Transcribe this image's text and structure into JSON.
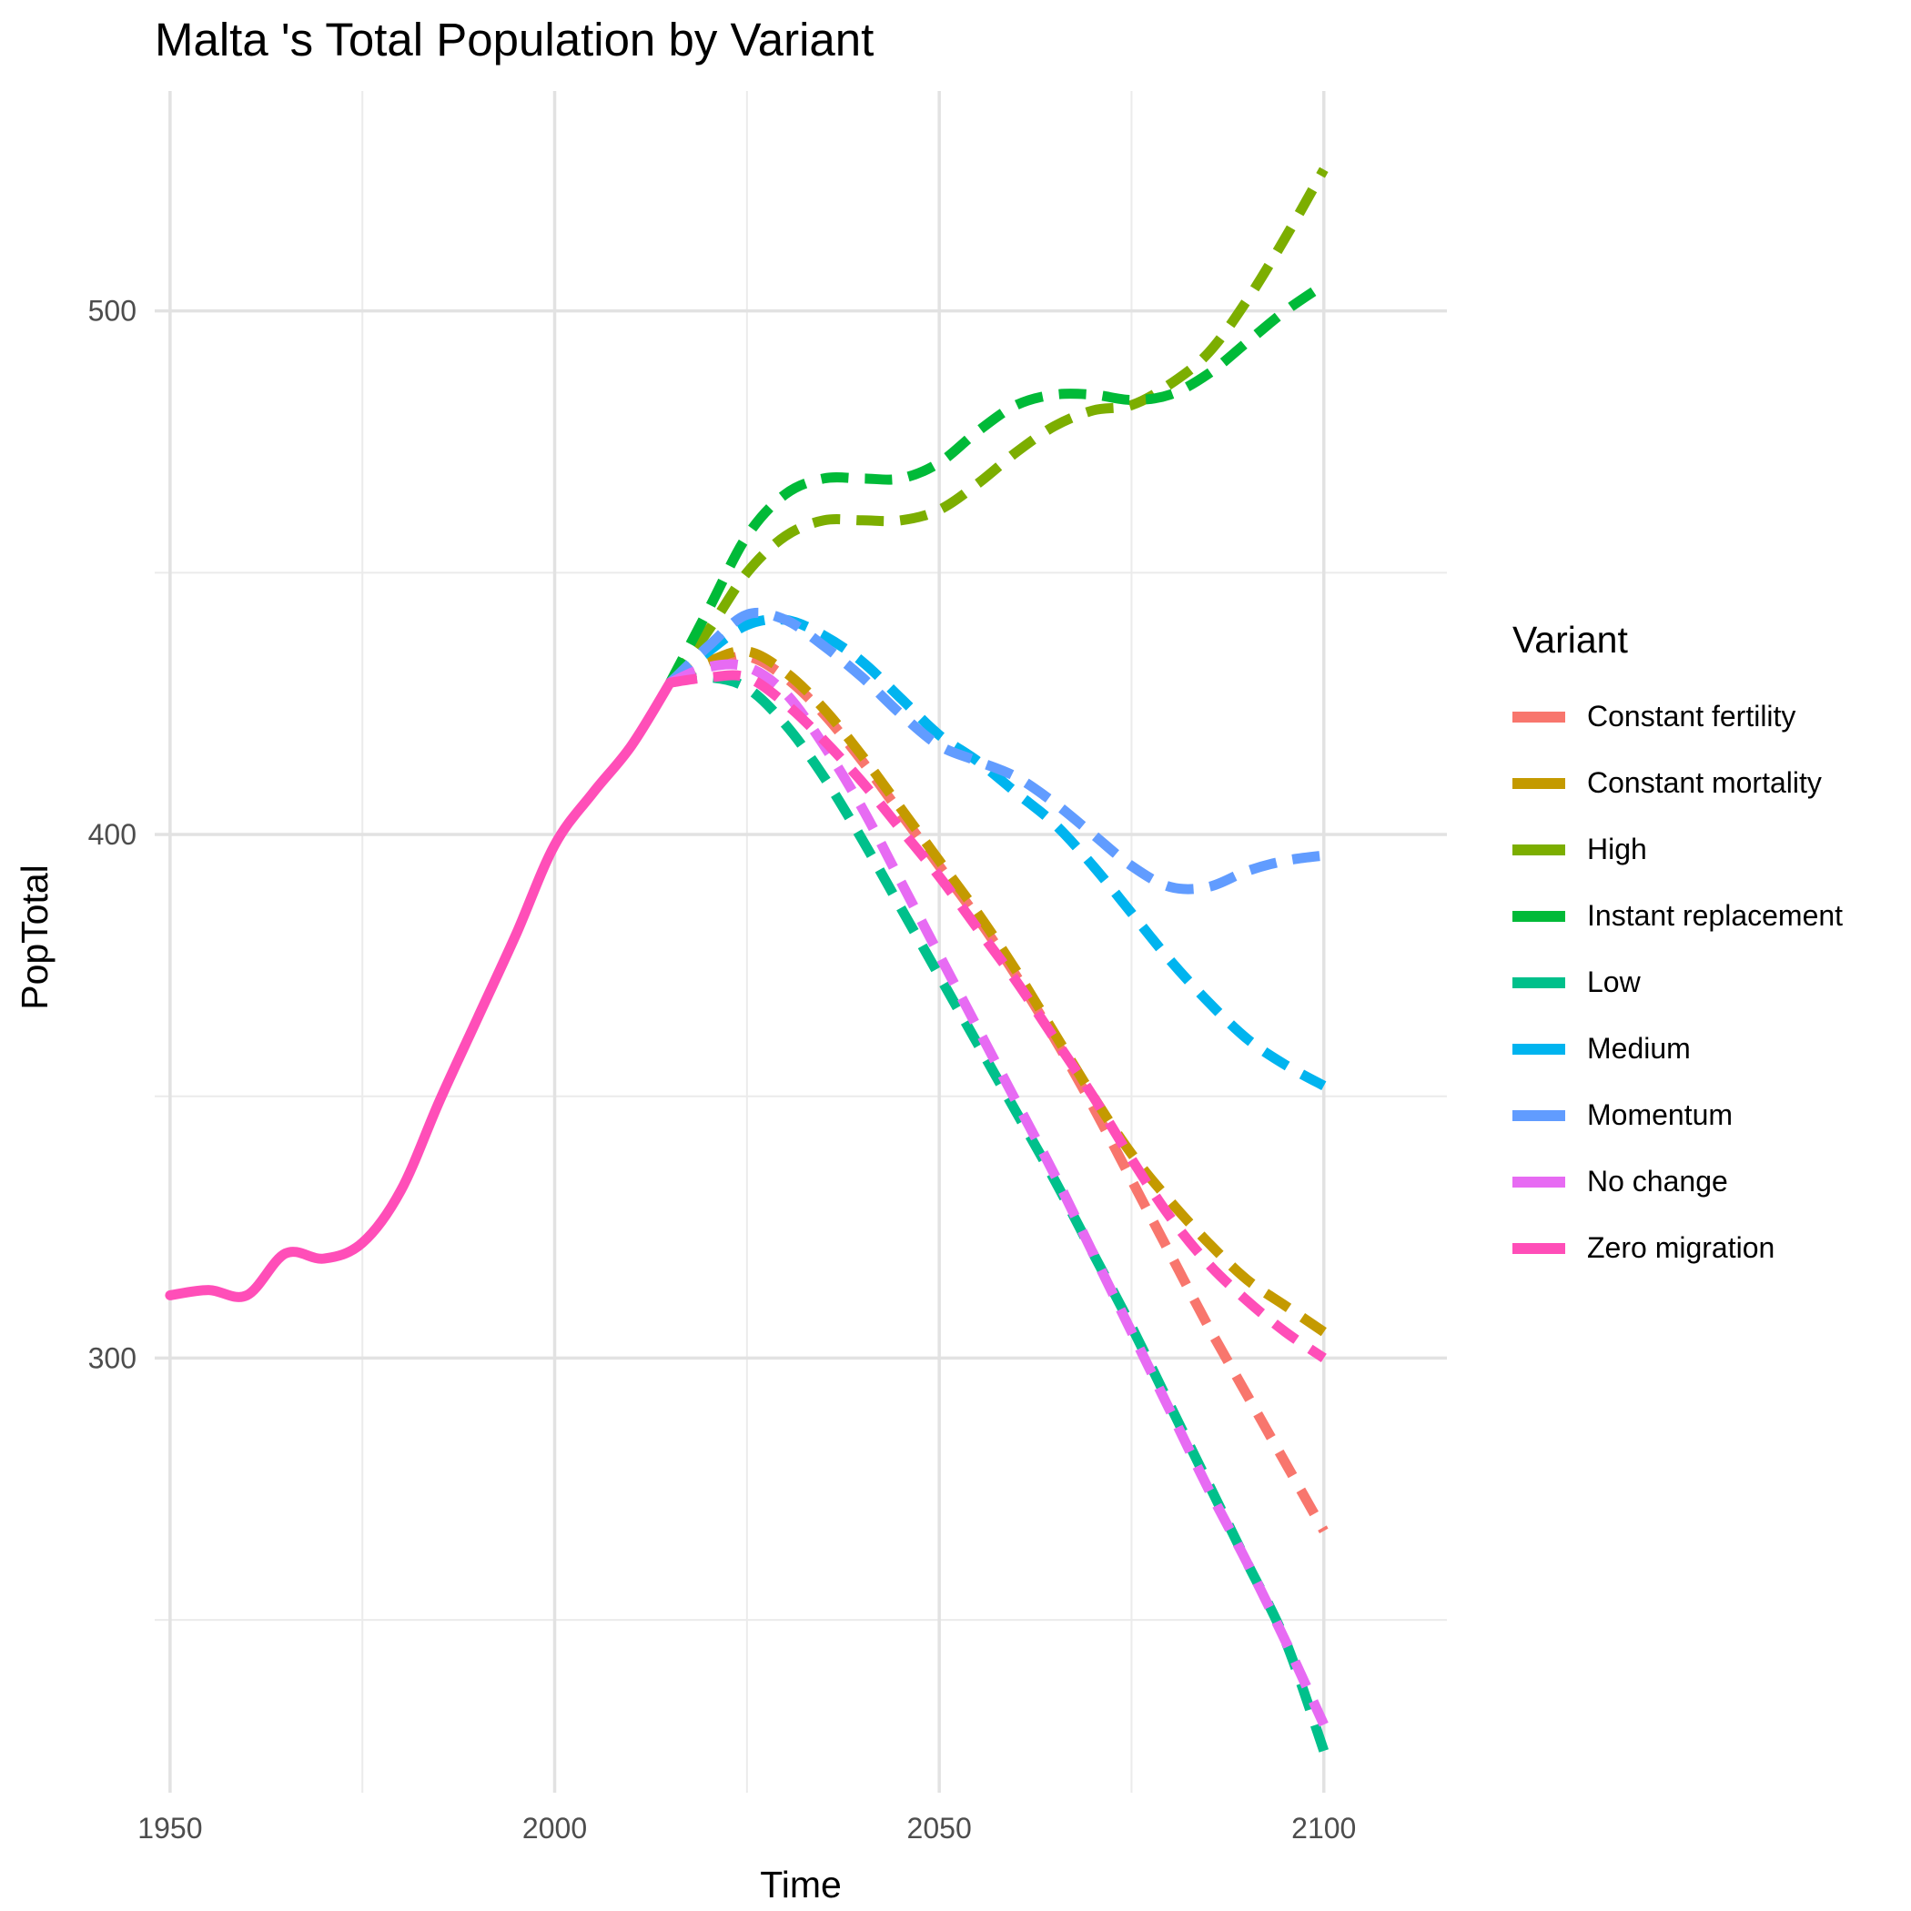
{
  "chart_data": {
    "type": "line",
    "title": "Malta 's Total Population by Variant",
    "xlabel": "Time",
    "ylabel": "PopTotal",
    "xlim": [
      1948,
      2116
    ],
    "ylim": [
      217,
      542
    ],
    "x_ticks": [
      1950,
      2000,
      2050,
      2100
    ],
    "x_minor": [
      1975,
      2025,
      2075
    ],
    "y_ticks": [
      300,
      400,
      500
    ],
    "y_minor": [
      250,
      350,
      450
    ],
    "grid": true,
    "legend": {
      "title": "Variant",
      "placement": "right"
    },
    "series": [
      {
        "name": "Constant fertility",
        "color": "#F8766D",
        "dashed": true,
        "x": [
          2015,
          2020,
          2025,
          2030,
          2035,
          2040,
          2045,
          2050,
          2055,
          2060,
          2065,
          2070,
          2075,
          2080,
          2085,
          2090,
          2095,
          2100
        ],
        "y": [
          429,
          432,
          434,
          430,
          423,
          414,
          404,
          394,
          384,
          373,
          361,
          348,
          334,
          320,
          306,
          293,
          280,
          267
        ]
      },
      {
        "name": "Constant mortality",
        "color": "#C49A00",
        "dashed": true,
        "x": [
          2015,
          2020,
          2025,
          2030,
          2035,
          2040,
          2045,
          2050,
          2055,
          2060,
          2065,
          2070,
          2075,
          2080,
          2085,
          2090,
          2095,
          2100
        ],
        "y": [
          429,
          433,
          435,
          431,
          424,
          415,
          405,
          395,
          385,
          374,
          362,
          350,
          339,
          330,
          322,
          315,
          310,
          305
        ]
      },
      {
        "name": "High",
        "color": "#7CAE00",
        "dashed": true,
        "x": [
          2015,
          2020,
          2025,
          2030,
          2035,
          2040,
          2045,
          2050,
          2055,
          2060,
          2065,
          2070,
          2075,
          2080,
          2085,
          2090,
          2095,
          2100
        ],
        "y": [
          429,
          439,
          450,
          457,
          460,
          460,
          460,
          462,
          467,
          473,
          478,
          481,
          482,
          486,
          492,
          502,
          514,
          527
        ]
      },
      {
        "name": "Instant replacement",
        "color": "#00BA38",
        "dashed": true,
        "x": [
          2015,
          2020,
          2025,
          2030,
          2035,
          2040,
          2045,
          2050,
          2055,
          2060,
          2065,
          2070,
          2075,
          2080,
          2085,
          2090,
          2095,
          2100
        ],
        "y": [
          429,
          443,
          457,
          465,
          468,
          468,
          468,
          471,
          477,
          482,
          484,
          484,
          483,
          484,
          488,
          494,
          500,
          505
        ]
      },
      {
        "name": "Low",
        "color": "#00C08B",
        "dashed": true,
        "x": [
          2015,
          2020,
          2025,
          2030,
          2035,
          2040,
          2045,
          2050,
          2055,
          2060,
          2065,
          2070,
          2075,
          2080,
          2085,
          2090,
          2095,
          2100
        ],
        "y": [
          429,
          430,
          428,
          421,
          411,
          399,
          386,
          373,
          360,
          347,
          334,
          320,
          306,
          291,
          276,
          261,
          246,
          225
        ]
      },
      {
        "name": "Medium",
        "color": "#00B4EF",
        "dashed": true,
        "x": [
          2015,
          2020,
          2025,
          2030,
          2035,
          2040,
          2045,
          2050,
          2055,
          2060,
          2065,
          2070,
          2075,
          2080,
          2085,
          2090,
          2095,
          2100
        ],
        "y": [
          429,
          435,
          440,
          441,
          438,
          433,
          426,
          419,
          414,
          408,
          402,
          394,
          385,
          376,
          368,
          361,
          356,
          352
        ]
      },
      {
        "name": "Momentum",
        "color": "#619CFF",
        "dashed": true,
        "x": [
          2015,
          2020,
          2025,
          2030,
          2035,
          2040,
          2045,
          2050,
          2055,
          2060,
          2065,
          2070,
          2075,
          2080,
          2085,
          2090,
          2095,
          2100
        ],
        "y": [
          429,
          436,
          442,
          441,
          436,
          430,
          423,
          417,
          414,
          411,
          406,
          400,
          394,
          390,
          390,
          393,
          395,
          396
        ]
      },
      {
        "name": "No change",
        "color": "#E76BF3",
        "dashed": true,
        "x": [
          2015,
          2020,
          2025,
          2030,
          2035,
          2040,
          2045,
          2050,
          2055,
          2060,
          2065,
          2070,
          2075,
          2080,
          2085,
          2090,
          2095,
          2100
        ],
        "y": [
          429,
          432,
          432,
          427,
          417,
          405,
          391,
          377,
          363,
          349,
          335,
          320,
          305,
          290,
          275,
          261,
          246,
          230
        ]
      },
      {
        "name": "Zero migration",
        "color": "#FF4EB8",
        "dashed": true,
        "x": [
          2015,
          2020,
          2025,
          2030,
          2035,
          2040,
          2045,
          2050,
          2055,
          2060,
          2065,
          2070,
          2075,
          2080,
          2085,
          2090,
          2095,
          2100
        ],
        "y": [
          429,
          430,
          430,
          425,
          418,
          410,
          401,
          392,
          382,
          372,
          361,
          350,
          338,
          327,
          318,
          311,
          305,
          300
        ]
      }
    ],
    "historical": {
      "name": "Zero migration",
      "color": "#FF4EB8",
      "dashed": false,
      "x": [
        1950,
        1955,
        1960,
        1965,
        1970,
        1975,
        1980,
        1985,
        1990,
        1995,
        2000,
        2005,
        2010,
        2015
      ],
      "y": [
        312,
        313,
        312,
        320,
        319,
        322,
        332,
        349,
        365,
        381,
        398,
        408,
        417,
        429
      ]
    }
  }
}
